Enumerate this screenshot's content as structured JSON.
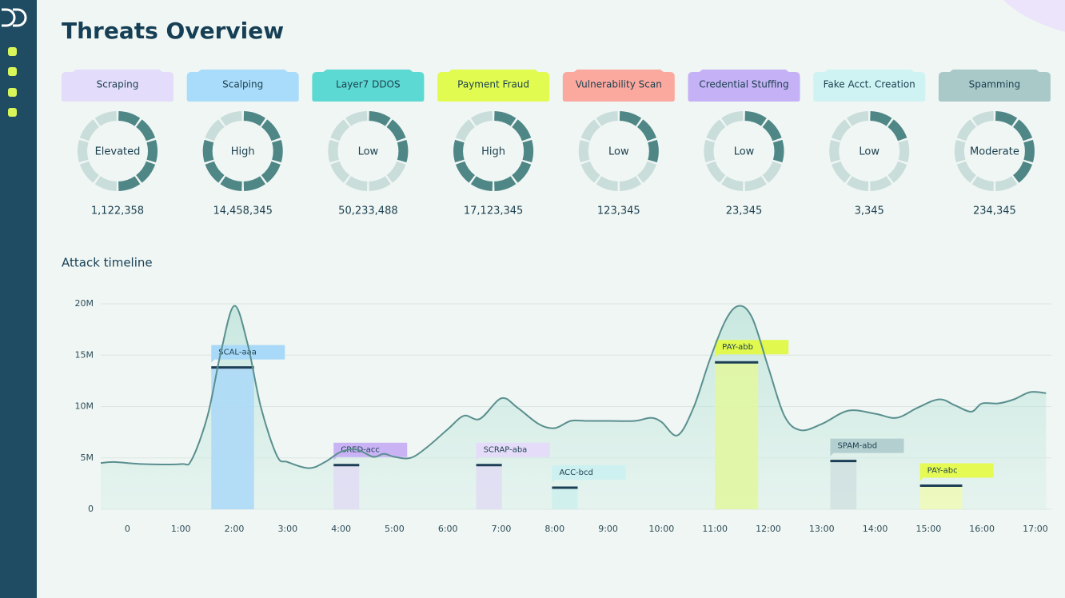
{
  "title": "Threats Overview",
  "threats": [
    {
      "name": "Scraping",
      "color": "#e3dcfa",
      "level": "Elevated",
      "segments": 10,
      "filled": 5,
      "count": "1,122,358"
    },
    {
      "name": "Scalping",
      "color": "#a8dcfa",
      "level": "High",
      "segments": 10,
      "filled": 8,
      "count": "14,458,345"
    },
    {
      "name": "Layer7 DDOS",
      "color": "#5cd9d2",
      "level": "Low",
      "segments": 10,
      "filled": 3,
      "count": "50,233,488"
    },
    {
      "name": "Payment Fraud",
      "color": "#e1fb50",
      "level": "High",
      "segments": 10,
      "filled": 8,
      "count": "17,123,345"
    },
    {
      "name": "Vulnerability Scan",
      "color": "#fba89e",
      "level": "Low",
      "segments": 10,
      "filled": 3,
      "count": "123,345"
    },
    {
      "name": "Credential Stuffing",
      "color": "#c5b1f5",
      "level": "Low",
      "segments": 10,
      "filled": 3,
      "count": "23,345"
    },
    {
      "name": "Fake Acct. Creation",
      "color": "#cef3f2",
      "level": "Low",
      "segments": 10,
      "filled": 2,
      "count": "3,345"
    },
    {
      "name": "Spamming",
      "color": "#a9c9c9",
      "level": "Moderate",
      "segments": 10,
      "filled": 4,
      "count": "234,345"
    }
  ],
  "chart_data": {
    "type": "line",
    "title": "Attack timeline",
    "color": "#5a8f8f",
    "grid": true,
    "x": [
      -0.5,
      -0.25,
      0.3,
      1.0,
      1.2,
      1.5,
      1.75,
      2.0,
      2.25,
      2.5,
      2.8,
      3.0,
      3.4,
      3.7,
      4.0,
      4.3,
      4.6,
      4.8,
      5.0,
      5.3,
      5.6,
      6.0,
      6.3,
      6.6,
      7.0,
      7.3,
      7.7,
      8.0,
      8.3,
      8.6,
      9.0,
      9.5,
      9.8,
      10.0,
      10.3,
      10.6,
      10.9,
      11.2,
      11.45,
      11.7,
      12.0,
      12.3,
      12.6,
      13.0,
      13.5,
      14.0,
      14.4,
      14.8,
      15.2,
      15.5,
      15.8,
      16.0,
      16.3,
      16.6,
      16.9,
      17.2
    ],
    "values": [
      4500000,
      4600000,
      4400000,
      4400000,
      4800000,
      9100000,
      15300000,
      19800000,
      16100000,
      9900000,
      5200000,
      4600000,
      4000000,
      4600000,
      5600000,
      5800000,
      5100000,
      5400000,
      5100000,
      5000000,
      6000000,
      7800000,
      9100000,
      8800000,
      10800000,
      9900000,
      8300000,
      7900000,
      8600000,
      8600000,
      8600000,
      8600000,
      8900000,
      8500000,
      7200000,
      9900000,
      14500000,
      18400000,
      19800000,
      18600000,
      13800000,
      9100000,
      7700000,
      8300000,
      9600000,
      9300000,
      8900000,
      9900000,
      10700000,
      10100000,
      9500000,
      10300000,
      10300000,
      10700000,
      11400000,
      11300000
    ],
    "xlim": [
      -0.5,
      17.3
    ],
    "xticks": [
      0,
      {
        "value": 1,
        "label": "1:00"
      },
      {
        "value": 2,
        "label": "2:00"
      },
      {
        "value": 3,
        "label": "3:00"
      },
      {
        "value": 4,
        "label": "4:00"
      },
      {
        "value": 5,
        "label": "5:00"
      },
      {
        "value": 6,
        "label": "6:00"
      },
      {
        "value": 7,
        "label": "7:00"
      },
      {
        "value": 8,
        "label": "8:00"
      },
      {
        "value": 9,
        "label": "9:00"
      },
      {
        "value": 10,
        "label": "10:00"
      },
      {
        "value": 11,
        "label": "11:00"
      },
      {
        "value": 12,
        "label": "12:00"
      },
      {
        "value": 13,
        "label": "13:00"
      },
      {
        "value": 14,
        "label": "14:00"
      },
      {
        "value": 15,
        "label": "15:00"
      },
      {
        "value": 16,
        "label": "16:00"
      },
      {
        "value": 17,
        "label": "17:00"
      }
    ],
    "ylim": [
      0,
      20000000
    ],
    "yticks": [
      0,
      {
        "value": 5000000,
        "label": "5M"
      },
      {
        "value": 10000000,
        "label": "10M"
      },
      {
        "value": 15000000,
        "label": "15M"
      },
      {
        "value": 20000000,
        "label": "20M"
      }
    ],
    "events": [
      {
        "label": "SCAL-aaa",
        "start": 1.57,
        "end": 2.37,
        "value": 13800000,
        "color": "#aad8f8",
        "label_color": "#a9d9f8"
      },
      {
        "label": "CRED-acc",
        "start": 3.86,
        "end": 4.34,
        "value": 4300000,
        "color": "#e0dcf3",
        "label_color": "#c9b3f5"
      },
      {
        "label": "SCRAP-aba",
        "start": 6.53,
        "end": 7.01,
        "value": 4300000,
        "color": "#e0dcf3",
        "label_color": "#e5dcfa"
      },
      {
        "label": "ACC-bcd",
        "start": 7.95,
        "end": 8.43,
        "value": 2100000,
        "color": "#cdeeed",
        "label_color": "#cdf1f0"
      },
      {
        "label": "PAY-abb",
        "start": 11.0,
        "end": 11.81,
        "value": 14300000,
        "color": "#e2f79d",
        "label_color": "#e1f94f"
      },
      {
        "label": "SPAM-abd",
        "start": 13.16,
        "end": 13.65,
        "value": 4700000,
        "color": "#d0e1e1",
        "label_color": "#b3cfcf"
      },
      {
        "label": "PAY-abc",
        "start": 14.84,
        "end": 15.63,
        "value": 2300000,
        "color": "#eef9b5",
        "label_color": "#e5fb53"
      }
    ]
  }
}
